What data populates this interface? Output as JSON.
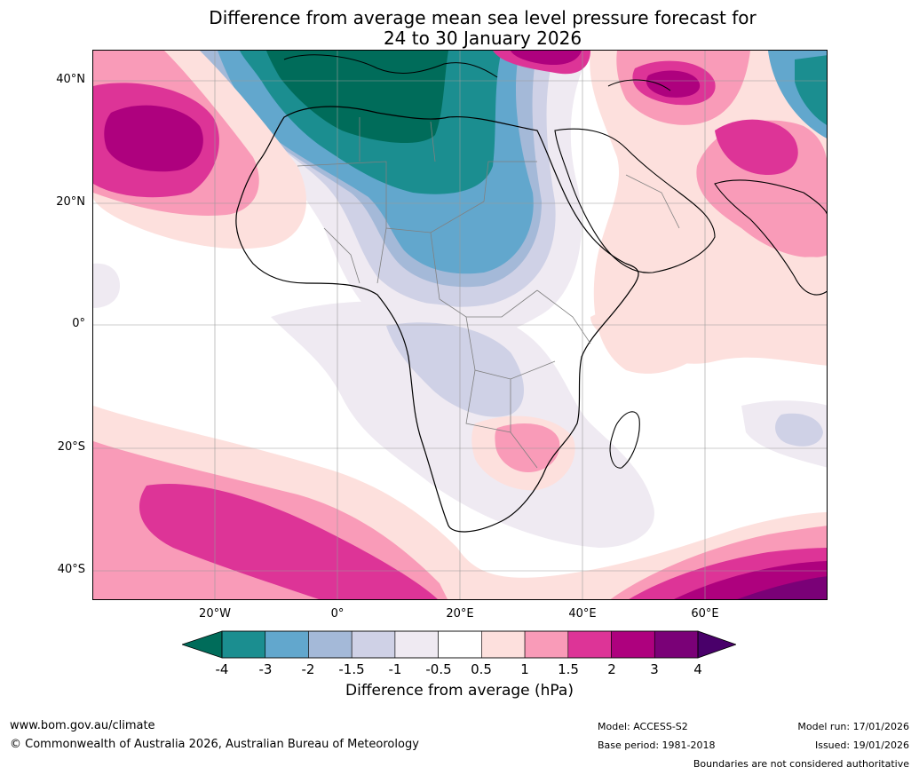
{
  "title": "Difference from average mean sea level pressure forecast for\n24 to 30 January 2026",
  "map": {
    "region": "Africa",
    "lat_labels": [
      "40°N",
      "20°N",
      "0°",
      "20°S",
      "40°S"
    ],
    "lon_labels": [
      "20°W",
      "0°",
      "20°E",
      "40°E",
      "60°E"
    ]
  },
  "colorbar": {
    "ticks": [
      "-4",
      "-3",
      "-2",
      "-1.5",
      "-1",
      "-0.5",
      "0.5",
      "1",
      "1.5",
      "2",
      "3",
      "4"
    ],
    "colors": [
      "#1b8e90",
      "#62a7cd",
      "#a4b9d8",
      "#cfd1e6",
      "#efeaf2",
      "#ffffff",
      "#fde0dd",
      "#f99bb8",
      "#dd3497",
      "#ae017e",
      "#7a0177"
    ],
    "under_color": "#006c5a",
    "over_color": "#49006a",
    "label": "Difference from average (hPa)"
  },
  "footer": {
    "site": "www.bom.gov.au/climate",
    "copyright": "© Commonwealth of Australia 2026, Australian Bureau of Meteorology",
    "model": "Model: ACCESS-S2",
    "base_period": "Base period: 1981-2018",
    "model_run": "Model run: 17/01/2026",
    "issued": "Issued: 19/01/2026",
    "disclaimer": "Boundaries are not considered authoritative"
  }
}
